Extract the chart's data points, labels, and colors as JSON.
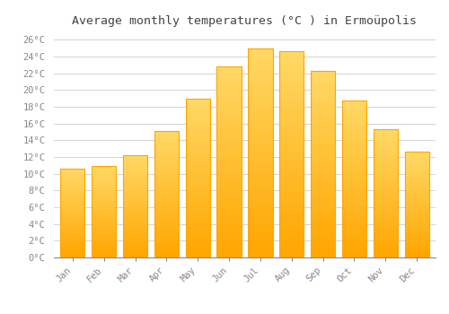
{
  "months": [
    "Jan",
    "Feb",
    "Mar",
    "Apr",
    "May",
    "Jun",
    "Jul",
    "Aug",
    "Sep",
    "Oct",
    "Nov",
    "Dec"
  ],
  "temperatures": [
    10.6,
    10.9,
    12.2,
    15.1,
    19.0,
    22.8,
    25.0,
    24.6,
    22.3,
    18.7,
    15.3,
    12.6
  ],
  "bar_color_top": "#FFD966",
  "bar_color_bottom": "#FFA500",
  "background_color": "#FFFFFF",
  "grid_color": "#CCCCCC",
  "title": "Average monthly temperatures (°C ) in Ermoüpolis",
  "title_fontsize": 9.5,
  "title_color": "#444444",
  "tick_label_color": "#888888",
  "ylim": [
    0,
    27
  ],
  "yticks": [
    0,
    2,
    4,
    6,
    8,
    10,
    12,
    14,
    16,
    18,
    20,
    22,
    24,
    26
  ],
  "ytick_labels": [
    "0°C",
    "2°C",
    "4°C",
    "6°C",
    "8°C",
    "10°C",
    "12°C",
    "14°C",
    "16°C",
    "18°C",
    "20°C",
    "22°C",
    "24°C",
    "26°C"
  ]
}
